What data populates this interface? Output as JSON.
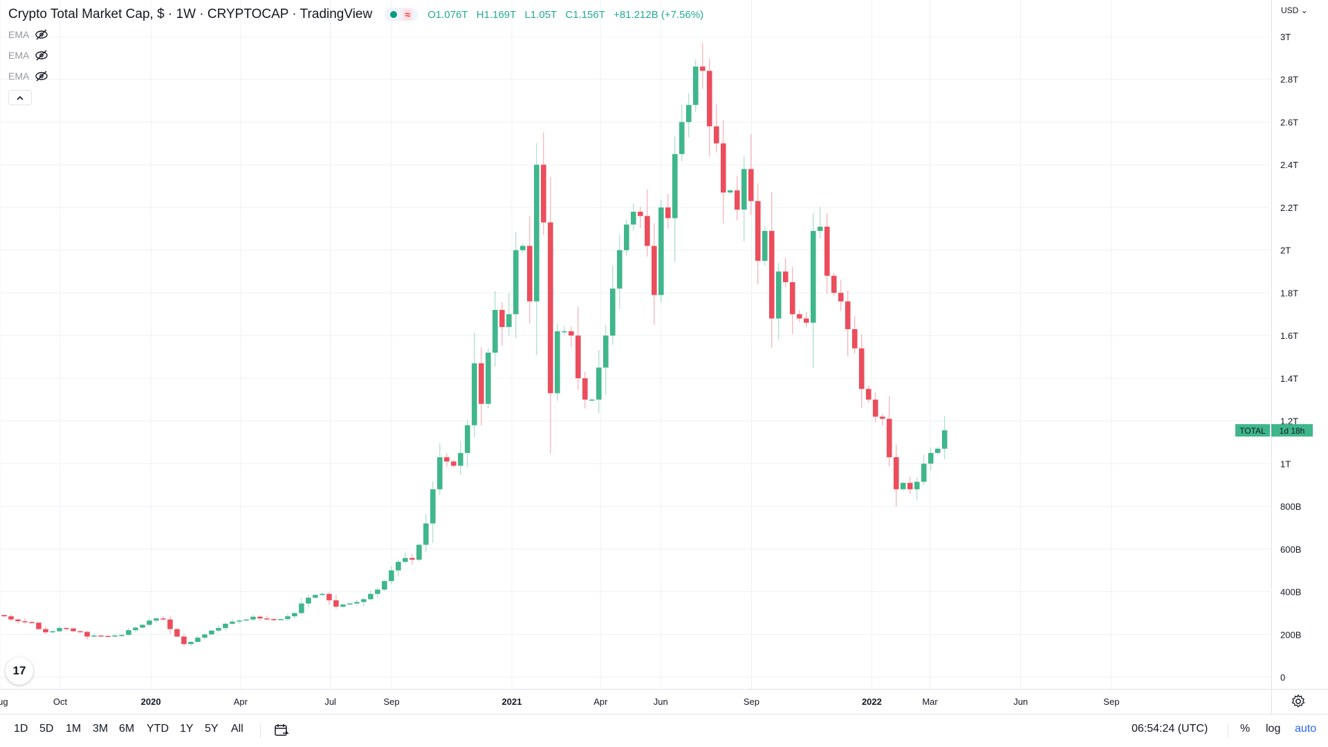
{
  "header": {
    "title": "Crypto Total Market Cap, $ · 1W · CRYPTOCAP · TradingView",
    "ohlc": {
      "open": "O1.076T",
      "high": "H1.169T",
      "low": "L1.05T",
      "close": "C1.156T",
      "change": "+81.212B (+7.56%)"
    },
    "indicators": [
      "EMA",
      "EMA",
      "EMA"
    ],
    "currency": "USD"
  },
  "colors": {
    "up": "#3fb68b",
    "down": "#eb4d5c",
    "grid": "#eef1f6",
    "text": "#131722",
    "label_bg": "#3fb68b"
  },
  "chart_data": {
    "type": "candlestick",
    "interval": "1W",
    "y_unit": "USD",
    "ylim": [
      0,
      3000000000000
    ],
    "yticks": [
      {
        "value": 0,
        "label": "0"
      },
      {
        "value": 200000000000,
        "label": "200B"
      },
      {
        "value": 400000000000,
        "label": "400B"
      },
      {
        "value": 600000000000,
        "label": "600B"
      },
      {
        "value": 800000000000,
        "label": "800B"
      },
      {
        "value": 1000000000000,
        "label": "1T"
      },
      {
        "value": 1200000000000,
        "label": "1.2T"
      },
      {
        "value": 1400000000000,
        "label": "1.4T"
      },
      {
        "value": 1600000000000,
        "label": "1.6T"
      },
      {
        "value": 1800000000000,
        "label": "1.8T"
      },
      {
        "value": 2000000000000,
        "label": "2T"
      },
      {
        "value": 2200000000000,
        "label": "2.2T"
      },
      {
        "value": 2400000000000,
        "label": "2.4T"
      },
      {
        "value": 2600000000000,
        "label": "2.6T"
      },
      {
        "value": 2800000000000,
        "label": "2.8T"
      },
      {
        "value": 3000000000000,
        "label": "3T"
      }
    ],
    "xticks": [
      {
        "date": "2019-08-01",
        "label": "Aug"
      },
      {
        "date": "2019-10-01",
        "label": "Oct"
      },
      {
        "date": "2020-01-01",
        "label": "2020"
      },
      {
        "date": "2020-04-01",
        "label": "Apr"
      },
      {
        "date": "2020-07-01",
        "label": "Jul"
      },
      {
        "date": "2020-09-01",
        "label": "Sep"
      },
      {
        "date": "2021-01-01",
        "label": "2021"
      },
      {
        "date": "2021-04-01",
        "label": "Apr"
      },
      {
        "date": "2021-06-01",
        "label": "Jun"
      },
      {
        "date": "2021-09-01",
        "label": "Sep"
      },
      {
        "date": "2022-01-01",
        "label": "2022"
      },
      {
        "date": "2022-03-01",
        "label": "Mar"
      },
      {
        "date": "2022-06-01",
        "label": "Jun"
      },
      {
        "date": "2022-09-01",
        "label": "Sep"
      }
    ],
    "series": [
      {
        "name": "TOTAL",
        "last_value_label": "TOTAL",
        "countdown_label": "1d 18h",
        "last_close": 1156000000000,
        "closes_billions": [
          285,
          270,
          262,
          258,
          255,
          225,
          210,
          215,
          230,
          228,
          215,
          212,
          190,
          195,
          193,
          192,
          195,
          198,
          220,
          232,
          245,
          265,
          275,
          270,
          225,
          190,
          155,
          165,
          185,
          200,
          218,
          230,
          250,
          260,
          265,
          270,
          283,
          275,
          272,
          268,
          272,
          285,
          300,
          345,
          372,
          385,
          390,
          360,
          330,
          340,
          345,
          352,
          365,
          390,
          410,
          450,
          500,
          540,
          558,
          550,
          620,
          720,
          880,
          1030,
          1010,
          990,
          1050,
          1180,
          1470,
          1280,
          1520,
          1720,
          1640,
          1700,
          2000,
          2020,
          1760,
          2400,
          2130,
          1330,
          1620,
          1620,
          1600,
          1400,
          1300,
          1300,
          1450,
          1600,
          1820,
          2000,
          2120,
          2180,
          2160,
          2020,
          1790,
          2200,
          2150,
          2450,
          2600,
          2680,
          2860,
          2840,
          2580,
          2500,
          2270,
          2280,
          2190,
          2380,
          2230,
          1950,
          2090,
          1680,
          1900,
          1850,
          1700,
          1680,
          1660,
          2090,
          2110,
          1880,
          1800,
          1760,
          1630,
          1540,
          1350,
          1300,
          1220,
          1210,
          1030,
          880,
          910,
          880,
          915,
          1000,
          1050,
          1070,
          1156
        ]
      }
    ],
    "title": "Crypto Total Market Cap, $ · 1W · CRYPTOCAP · TradingView"
  },
  "bottom_bar": {
    "ranges": [
      "1D",
      "5D",
      "1M",
      "3M",
      "6M",
      "YTD",
      "1Y",
      "5Y",
      "All"
    ],
    "clock": "06:54:24 (UTC)",
    "percent": "%",
    "log": "log",
    "auto": "auto"
  }
}
